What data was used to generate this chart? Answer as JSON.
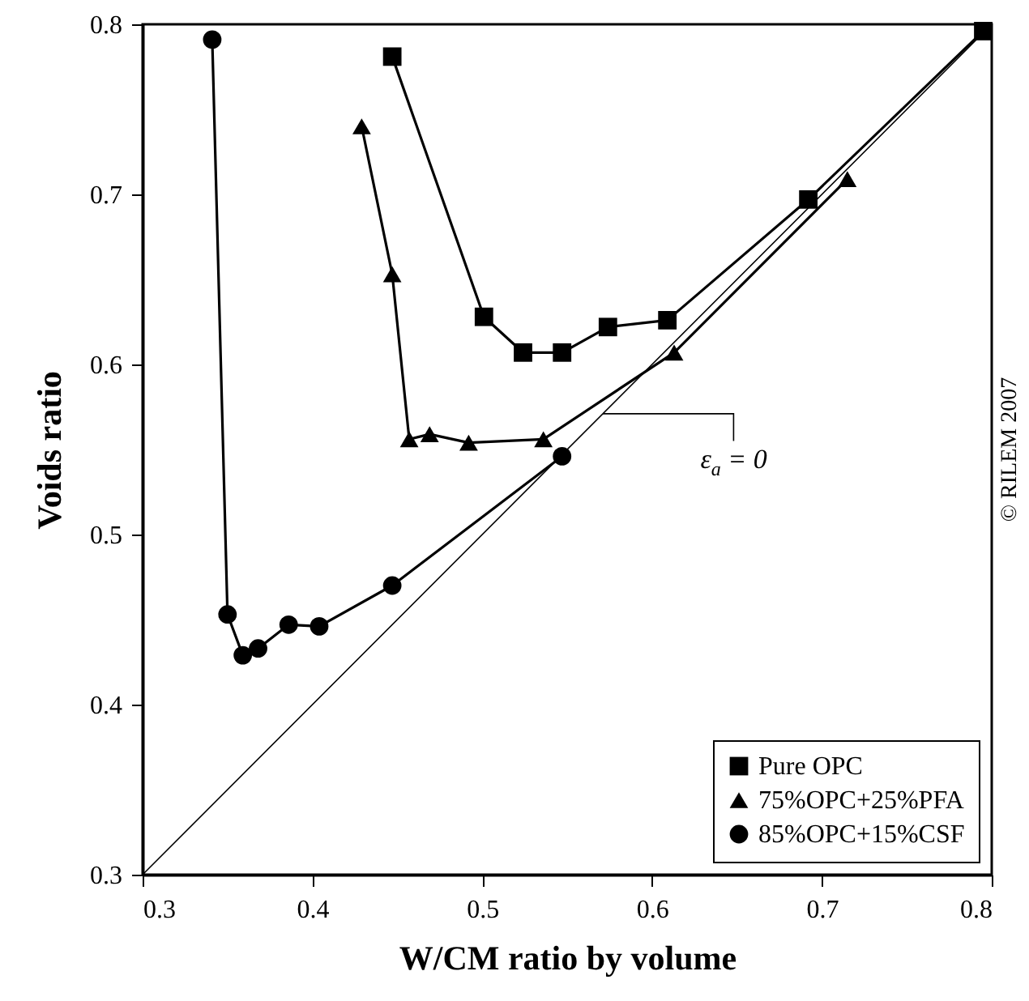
{
  "chart_data": {
    "type": "line",
    "xlabel": "W/CM ratio by volume",
    "ylabel": "Voids ratio",
    "xlim": [
      0.3,
      0.8
    ],
    "xticks": [
      0.3,
      0.4,
      0.5,
      0.6,
      0.7,
      0.8
    ],
    "ylim": [
      0.3,
      0.8
    ],
    "yticks": [
      0.3,
      0.4,
      0.5,
      0.6,
      0.7,
      0.8
    ],
    "grid": false,
    "legend": "bottom right",
    "line_style": "solid",
    "series": [
      {
        "name": "Pure OPC",
        "color": "#000000",
        "marker": "square",
        "x": [
          0.447,
          0.501,
          0.524,
          0.547,
          0.574,
          0.609,
          0.692,
          0.795
        ],
        "values": [
          0.781,
          0.628,
          0.607,
          0.607,
          0.622,
          0.626,
          0.697,
          0.796
        ]
      },
      {
        "name": "75%OPC+25%PFA",
        "color": "#000000",
        "marker": "triangle",
        "x": [
          0.429,
          0.447,
          0.457,
          0.469,
          0.492,
          0.536,
          0.613,
          0.715
        ],
        "values": [
          0.74,
          0.653,
          0.556,
          0.559,
          0.554,
          0.556,
          0.607,
          0.709
        ]
      },
      {
        "name": "85%OPC+15%CSF",
        "color": "#000000",
        "marker": "circle",
        "x": [
          0.341,
          0.35,
          0.359,
          0.368,
          0.386,
          0.404,
          0.447,
          0.547
        ],
        "values": [
          0.791,
          0.453,
          0.429,
          0.433,
          0.447,
          0.446,
          0.47,
          0.546
        ]
      },
      {
        "color": "#000000",
        "marker": "none",
        "x": [
          0.3,
          0.8
        ],
        "values": [
          0.3,
          0.8
        ]
      }
    ],
    "annotations": [
      {
        "text": "ε$_{a}$ = 0",
        "x": 0.571,
        "y": 0.571
      },
      "© RILEM 2007"
    ]
  }
}
